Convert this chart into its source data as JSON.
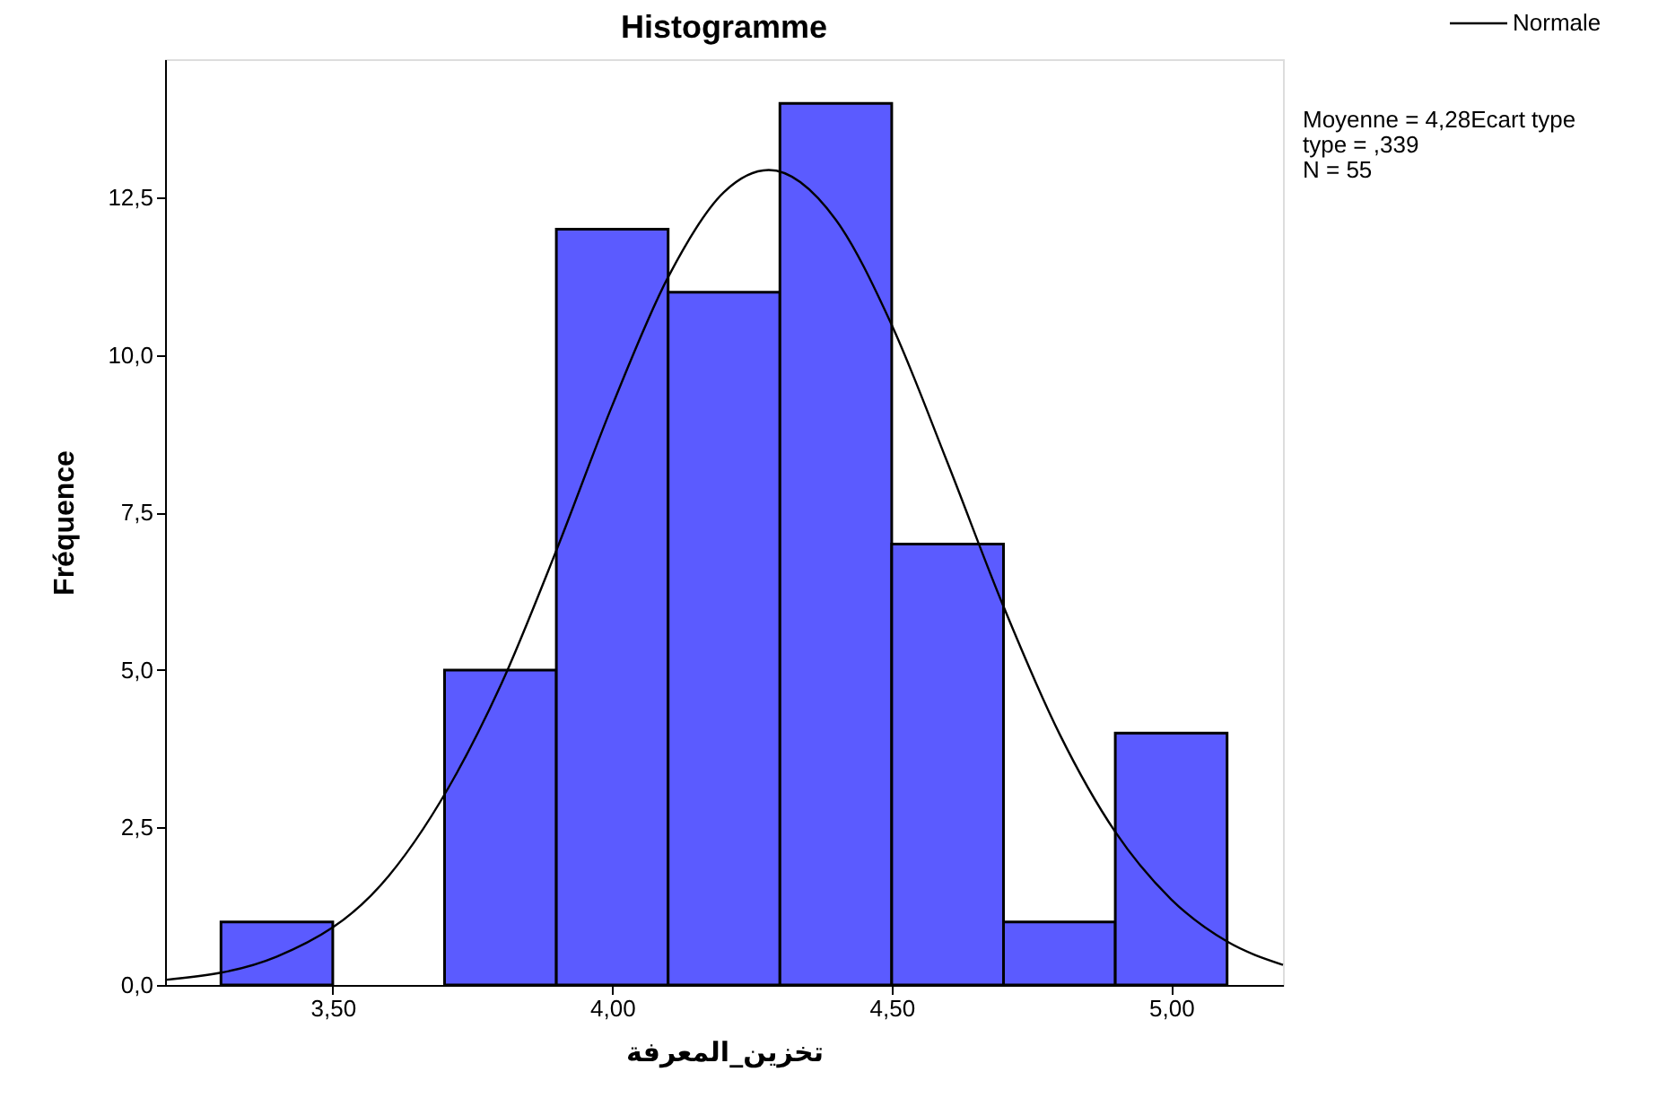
{
  "chart_data": {
    "type": "histogram",
    "title": "Histogramme",
    "xlabel": "تخزين_المعرفة",
    "ylabel": "Fréquence",
    "bins": [
      3.3,
      3.5,
      3.7,
      3.9,
      4.1,
      4.3,
      4.5,
      4.7,
      4.9,
      5.1
    ],
    "values": [
      1,
      0,
      5,
      12,
      11,
      14,
      7,
      1,
      4
    ],
    "color": "#5b5bff",
    "series": [
      {
        "name": "Normale",
        "type": "line",
        "color": "#000000",
        "x": [
          3.2,
          3.4,
          3.6,
          3.8,
          3.9,
          4.0,
          4.1,
          4.2,
          4.28,
          4.4,
          4.5,
          4.6,
          4.7,
          4.8,
          4.9,
          5.0,
          5.1,
          5.2
        ],
        "values": [
          0.08,
          0.45,
          1.73,
          4.75,
          6.9,
          9.2,
          11.24,
          12.59,
          12.94,
          12.15,
          10.48,
          8.29,
          6.01,
          3.99,
          2.43,
          1.36,
          0.69,
          0.32
        ]
      }
    ],
    "xlim": [
      3.2,
      5.2
    ],
    "xticks": [
      {
        "value": 3.5,
        "label": "3,50"
      },
      {
        "value": 4.0,
        "label": "4,00"
      },
      {
        "value": 4.5,
        "label": "4,50"
      },
      {
        "value": 5.0,
        "label": "5,00"
      }
    ],
    "ylim": [
      0,
      14.7
    ],
    "yticks": [
      {
        "value": 0,
        "label": "0,0"
      },
      {
        "value": 2.5,
        "label": "2,5"
      },
      {
        "value": 5,
        "label": "5,0"
      },
      {
        "value": 7.5,
        "label": "7,5"
      },
      {
        "value": 10,
        "label": "10,0"
      },
      {
        "value": 12.5,
        "label": "12,5"
      }
    ],
    "annotations": [
      "Moyenne = 4,28Ecart type",
      " type = ,339",
      "N = 55"
    ],
    "legend": "top right",
    "grid": false
  }
}
